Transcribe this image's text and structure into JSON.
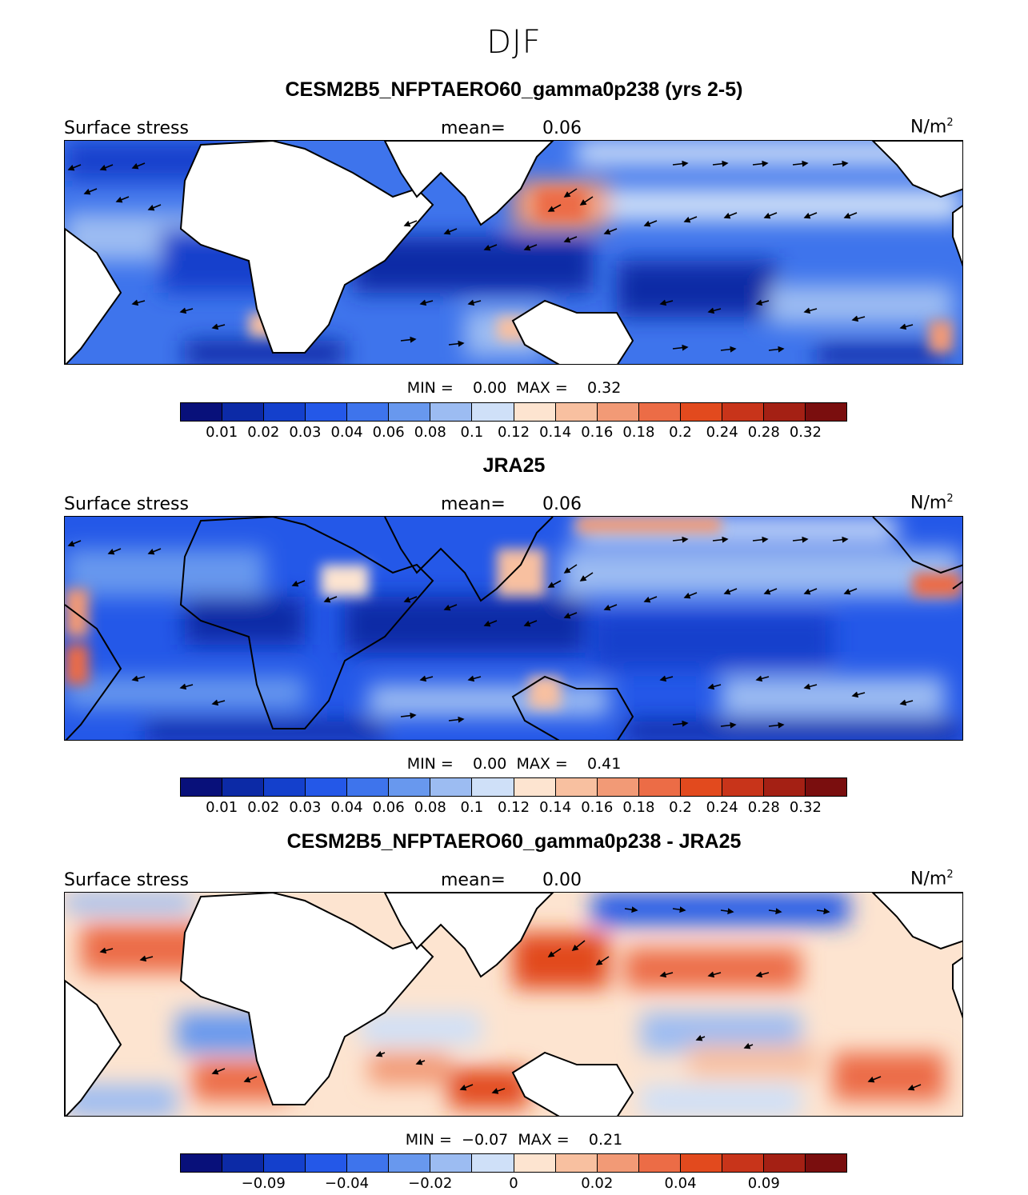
{
  "figure": {
    "season": "DJF"
  },
  "panels": [
    {
      "title": "CESM2B5_NFPTAERO60_gamma0p238 (yrs 2-5)",
      "left_label": "Surface stress",
      "mean_label": "mean=",
      "mean_value": "0.06",
      "units": "N/m",
      "units_exp": "2",
      "min_label": "MIN =",
      "min_value": "0.00",
      "max_label": "MAX =",
      "max_value": "0.32",
      "colorbar_ticks": [
        "0.01",
        "0.02",
        "0.03",
        "0.04",
        "0.06",
        "0.08",
        "0.1",
        "0.12",
        "0.14",
        "0.16",
        "0.18",
        "0.2",
        "0.24",
        "0.28",
        "0.32"
      ]
    },
    {
      "title": "JRA25",
      "left_label": "Surface stress",
      "mean_label": "mean=",
      "mean_value": "0.06",
      "units": "N/m",
      "units_exp": "2",
      "min_label": "MIN =",
      "min_value": "0.00",
      "max_label": "MAX =",
      "max_value": "0.41",
      "colorbar_ticks": [
        "0.01",
        "0.02",
        "0.03",
        "0.04",
        "0.06",
        "0.08",
        "0.1",
        "0.12",
        "0.14",
        "0.16",
        "0.18",
        "0.2",
        "0.24",
        "0.28",
        "0.32"
      ]
    },
    {
      "title": "CESM2B5_NFPTAERO60_gamma0p238 - JRA25",
      "left_label": "Surface stress",
      "mean_label": "mean=",
      "mean_value": "0.00",
      "units": "N/m",
      "units_exp": "2",
      "min_label": "MIN =",
      "min_value": "−0.07",
      "max_label": "MAX =",
      "max_value": "0.21",
      "colorbar_ticks": [
        "−0.09",
        "−0.04",
        "−0.02",
        "0",
        "0.02",
        "0.04",
        "0.09"
      ]
    }
  ],
  "colorbar_colors": [
    "#08107a",
    "#0c2aa6",
    "#1440cc",
    "#2458e8",
    "#3e74ec",
    "#6898ee",
    "#9cbcf2",
    "#cfe0f8",
    "#fde4d0",
    "#f8c0a0",
    "#f29a76",
    "#ec6c46",
    "#e24a1e",
    "#c8341a",
    "#a42014",
    "#7a0e0e"
  ]
}
